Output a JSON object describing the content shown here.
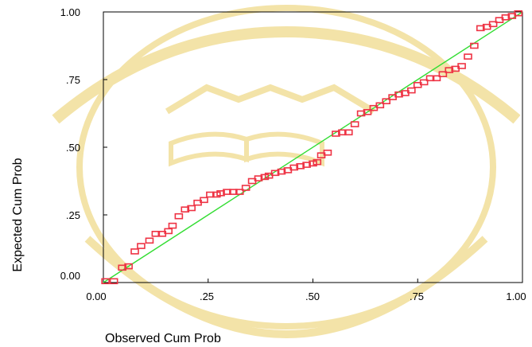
{
  "chart_data": {
    "type": "scatter",
    "title": "",
    "xlabel": "Observed Cum Prob",
    "ylabel": "Expected Cum Prob",
    "xlim": [
      0,
      1
    ],
    "ylim": [
      0,
      1
    ],
    "x_ticks": [
      "0.00",
      ".25",
      ".50",
      ".75",
      "1.00"
    ],
    "y_ticks": [
      "0.00",
      ".25",
      ".50",
      ".75",
      "1.00"
    ],
    "grid": false,
    "legend": "none",
    "reference_line": {
      "x": [
        0,
        1
      ],
      "y": [
        0,
        1
      ],
      "color": "#33dd33"
    },
    "marker_color": "#ee3344",
    "points": [
      [
        0.005,
        0.005
      ],
      [
        0.025,
        0.005
      ],
      [
        0.045,
        0.055
      ],
      [
        0.06,
        0.06
      ],
      [
        0.075,
        0.115
      ],
      [
        0.09,
        0.135
      ],
      [
        0.11,
        0.155
      ],
      [
        0.125,
        0.18
      ],
      [
        0.14,
        0.18
      ],
      [
        0.155,
        0.19
      ],
      [
        0.165,
        0.21
      ],
      [
        0.18,
        0.245
      ],
      [
        0.195,
        0.27
      ],
      [
        0.21,
        0.275
      ],
      [
        0.225,
        0.295
      ],
      [
        0.24,
        0.305
      ],
      [
        0.255,
        0.325
      ],
      [
        0.27,
        0.325
      ],
      [
        0.28,
        0.33
      ],
      [
        0.295,
        0.335
      ],
      [
        0.31,
        0.335
      ],
      [
        0.325,
        0.335
      ],
      [
        0.34,
        0.35
      ],
      [
        0.355,
        0.375
      ],
      [
        0.37,
        0.385
      ],
      [
        0.385,
        0.39
      ],
      [
        0.395,
        0.395
      ],
      [
        0.41,
        0.405
      ],
      [
        0.425,
        0.41
      ],
      [
        0.44,
        0.415
      ],
      [
        0.455,
        0.425
      ],
      [
        0.47,
        0.43
      ],
      [
        0.485,
        0.435
      ],
      [
        0.5,
        0.44
      ],
      [
        0.51,
        0.445
      ],
      [
        0.52,
        0.47
      ],
      [
        0.535,
        0.48
      ],
      [
        0.555,
        0.55
      ],
      [
        0.57,
        0.555
      ],
      [
        0.585,
        0.555
      ],
      [
        0.6,
        0.585
      ],
      [
        0.615,
        0.625
      ],
      [
        0.63,
        0.63
      ],
      [
        0.645,
        0.645
      ],
      [
        0.66,
        0.655
      ],
      [
        0.675,
        0.67
      ],
      [
        0.69,
        0.685
      ],
      [
        0.705,
        0.695
      ],
      [
        0.72,
        0.7
      ],
      [
        0.735,
        0.71
      ],
      [
        0.75,
        0.73
      ],
      [
        0.765,
        0.74
      ],
      [
        0.78,
        0.755
      ],
      [
        0.795,
        0.755
      ],
      [
        0.81,
        0.77
      ],
      [
        0.825,
        0.785
      ],
      [
        0.84,
        0.79
      ],
      [
        0.855,
        0.8
      ],
      [
        0.87,
        0.835
      ],
      [
        0.885,
        0.875
      ],
      [
        0.9,
        0.94
      ],
      [
        0.915,
        0.945
      ],
      [
        0.93,
        0.955
      ],
      [
        0.945,
        0.97
      ],
      [
        0.96,
        0.98
      ],
      [
        0.975,
        0.985
      ],
      [
        0.99,
        0.995
      ]
    ]
  }
}
